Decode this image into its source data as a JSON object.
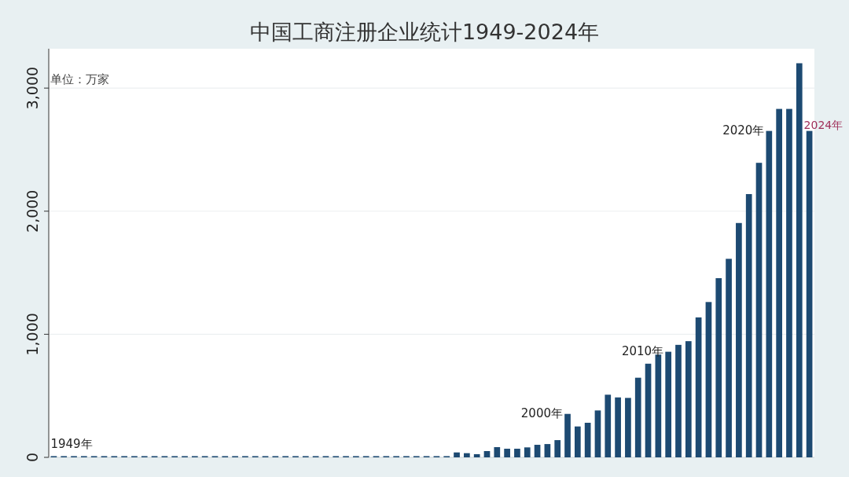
{
  "chart_data": {
    "type": "bar",
    "title": "中国工商注册企业统计1949-2024年",
    "categories": [
      null,
      null,
      null,
      null,
      null,
      null,
      null,
      null,
      null,
      null,
      null,
      null,
      null,
      null,
      null,
      null,
      null,
      null,
      null,
      null,
      null,
      null,
      null,
      null,
      null,
      null,
      null,
      null,
      null,
      null,
      null,
      null,
      null,
      null,
      null,
      null,
      null,
      null,
      null,
      null,
      null,
      null,
      null,
      null,
      null,
      null,
      null,
      null,
      null,
      null,
      null,
      null,
      null,
      null,
      null,
      null,
      null,
      null,
      null,
      null,
      null,
      null,
      null,
      null,
      null,
      null,
      null,
      null,
      null,
      null,
      null,
      null,
      null,
      null,
      null,
      null
    ],
    "values": [
      10,
      10,
      10,
      10,
      10,
      10,
      10,
      10,
      10,
      10,
      10,
      10,
      10,
      10,
      10,
      10,
      10,
      10,
      10,
      10,
      10,
      10,
      10,
      10,
      10,
      10,
      10,
      10,
      10,
      10,
      10,
      10,
      10,
      10,
      10,
      10,
      10,
      10,
      10,
      10,
      40,
      34,
      26,
      51,
      83,
      70,
      70,
      81,
      102,
      108,
      140,
      353,
      251,
      281,
      381,
      509,
      487,
      483,
      647,
      761,
      835,
      858,
      914,
      944,
      1137,
      1262,
      1456,
      1613,
      1904,
      2139,
      2393,
      2652,
      2831,
      2831,
      3202,
      2652
    ],
    "color": "#1d4a72",
    "ylim": [
      0,
      3320
    ],
    "yticks": [
      0,
      {
        "value": 1000,
        "label": "1,000"
      },
      {
        "value": 2000,
        "label": "2,000"
      },
      {
        "value": 3000,
        "label": "3,000"
      }
    ],
    "tick_labels": "y",
    "grid": "y",
    "annotations": [
      "单位：万家",
      "1949年",
      "2000年",
      "2010年",
      "2020年",
      "2024年"
    ]
  }
}
